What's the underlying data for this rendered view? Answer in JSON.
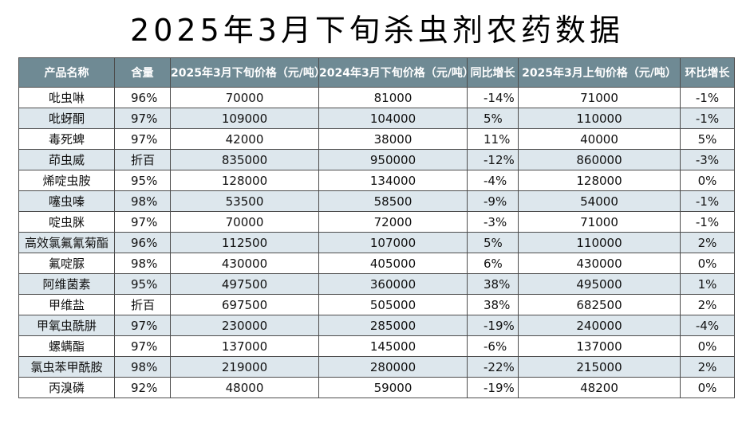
{
  "title": "2025年3月下旬杀虫剂农药数据",
  "table": {
    "headers": [
      "产品名称",
      "含量",
      "2025年3月下旬价格（元/吨）",
      "2024年3月下旬价格（元/吨）",
      "同比增长",
      "2025年3月上旬价格（元/吨）",
      "环比增长"
    ],
    "rows": [
      [
        "吡虫啉",
        "96%",
        "70000",
        "81000",
        "-14%",
        "71000",
        "-1%"
      ],
      [
        "吡蚜酮",
        "97%",
        "109000",
        "104000",
        "5%",
        "110000",
        "-1%"
      ],
      [
        "毒死蜱",
        "97%",
        "42000",
        "38000",
        "11%",
        "40000",
        "5%"
      ],
      [
        "茚虫威",
        "折百",
        "835000",
        "950000",
        "-12%",
        "860000",
        "-3%"
      ],
      [
        "烯啶虫胺",
        "95%",
        "128000",
        "134000",
        "-4%",
        "128000",
        "0%"
      ],
      [
        "噻虫嗪",
        "98%",
        "53500",
        "58500",
        "-9%",
        "54000",
        "-1%"
      ],
      [
        "啶虫脒",
        "97%",
        "70000",
        "72000",
        "-3%",
        "71000",
        "-1%"
      ],
      [
        "高效氯氟氰菊酯",
        "96%",
        "112500",
        "107000",
        "5%",
        "110000",
        "2%"
      ],
      [
        "氟啶脲",
        "98%",
        "430000",
        "405000",
        "6%",
        "430000",
        "0%"
      ],
      [
        "阿维菌素",
        "95%",
        "497500",
        "360000",
        "38%",
        "495000",
        "1%"
      ],
      [
        "甲维盐",
        "折百",
        "697500",
        "505000",
        "38%",
        "682500",
        "2%"
      ],
      [
        "甲氧虫酰肼",
        "97%",
        "230000",
        "285000",
        "-19%",
        "240000",
        "-4%"
      ],
      [
        "螺螨酯",
        "97%",
        "137000",
        "145000",
        "-6%",
        "137000",
        "0%"
      ],
      [
        "氯虫苯甲酰胺",
        "98%",
        "219000",
        "280000",
        "-22%",
        "215000",
        "2%"
      ],
      [
        "丙溴磷",
        "92%",
        "48000",
        "59000",
        "-19%",
        "48200",
        "0%"
      ]
    ]
  }
}
